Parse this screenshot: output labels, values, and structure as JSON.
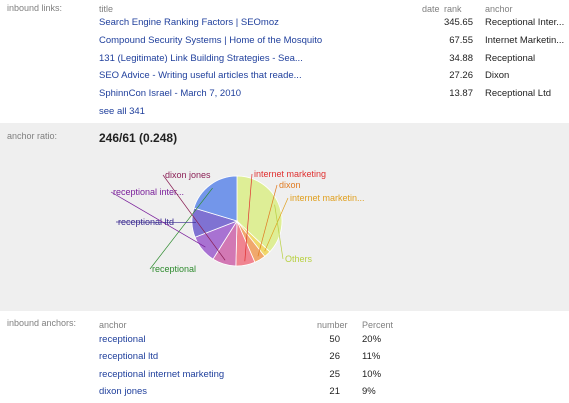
{
  "inbound_links": {
    "label": "inbound links:",
    "headers": {
      "title": "title",
      "date": "date",
      "rank": "rank",
      "anchor": "anchor"
    },
    "rows": [
      {
        "title": "Search Engine Ranking Factors | SEOmoz",
        "rank": "345.65",
        "anchor": "Receptional Inter..."
      },
      {
        "title": "Compound Security Systems | Home of the Mosquito",
        "rank": "67.55",
        "anchor": "Internet Marketin..."
      },
      {
        "title": "131 (Legitimate) Link Building Strategies - Sea...",
        "rank": "34.88",
        "anchor": "Receptional"
      },
      {
        "title": "SEO Advice - Writing useful articles that reade...",
        "rank": "27.26",
        "anchor": "Dixon"
      },
      {
        "title": "SphinnCon Israel - March 7, 2010",
        "rank": "13.87",
        "anchor": "Receptional Ltd"
      }
    ],
    "see_all": "see all 341"
  },
  "anchor_ratio": {
    "label": "anchor ratio:",
    "value": "246/61 (0.248)"
  },
  "chart_data": {
    "type": "pie",
    "title": "",
    "slices": [
      {
        "label": "receptional",
        "value": 50,
        "color": "#4a78e8",
        "label_color": "#2e8b2e"
      },
      {
        "label": "receptional ltd",
        "value": 26,
        "color": "#5a48c8",
        "label_color": "#3a2a90"
      },
      {
        "label": "receptional inter...",
        "value": 25,
        "color": "#9048c8",
        "label_color": "#7a1f9a"
      },
      {
        "label": "dixon jones",
        "value": 21,
        "color": "#c850a0",
        "label_color": "#8a1f55"
      },
      {
        "label": "internet marketing",
        "value": 17,
        "color": "#f06070",
        "label_color": "#e03030"
      },
      {
        "label": "dixon",
        "value": 10,
        "color": "#f09040",
        "label_color": "#e07a20"
      },
      {
        "label": "internet marketin...",
        "value": 6,
        "color": "#f0d040",
        "label_color": "#e0a020"
      },
      {
        "label": "Others",
        "value": 91,
        "color": "#d8ee78",
        "label_color": "#b8d040"
      }
    ]
  },
  "inbound_anchors": {
    "label": "inbound anchors:",
    "headers": {
      "anchor": "anchor",
      "number": "number",
      "percent": "Percent"
    },
    "rows": [
      {
        "anchor": "receptional",
        "number": "50",
        "percent": "20%"
      },
      {
        "anchor": "receptional ltd",
        "number": "26",
        "percent": "11%"
      },
      {
        "anchor": "receptional internet marketing",
        "number": "25",
        "percent": "10%"
      },
      {
        "anchor": "dixon jones",
        "number": "21",
        "percent": "9%"
      }
    ]
  }
}
